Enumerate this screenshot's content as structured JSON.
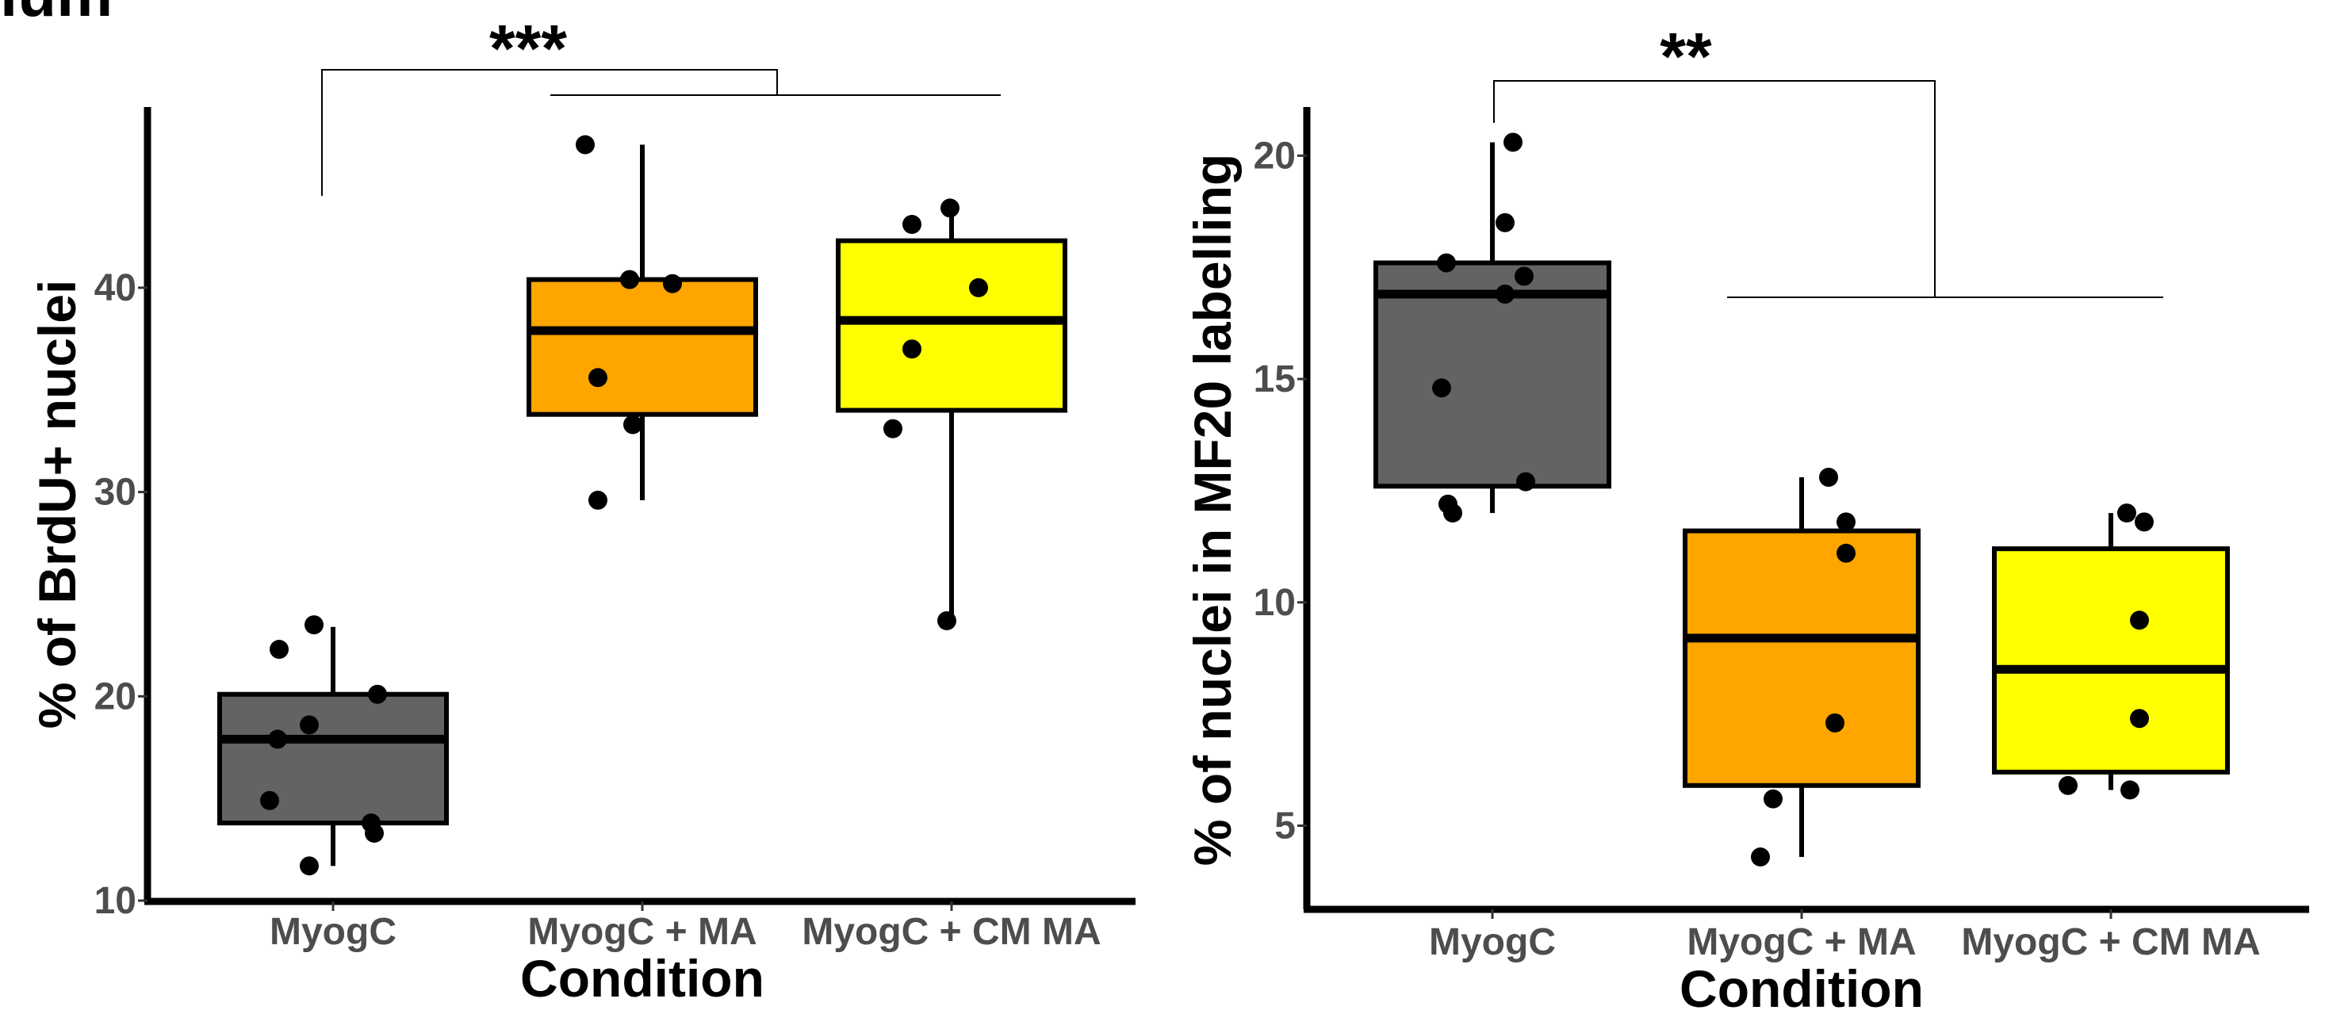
{
  "figure": {
    "top_label_fragment": "ium"
  },
  "chart_data": [
    {
      "type": "box",
      "title": "",
      "xlabel": "Condition",
      "ylabel": "% of BrdU+ nuclei",
      "ylim": [
        10,
        49
      ],
      "yticks": [
        10,
        20,
        30,
        40
      ],
      "grid": false,
      "legend": "none",
      "categories": [
        "MyogC",
        "MyogC + MA",
        "MyogC + CM MA"
      ],
      "colors": [
        "#636363",
        "#ffa500",
        "#ffff00"
      ],
      "boxes": [
        {
          "q1": 13.8,
          "median": 17.9,
          "q3": 20.1,
          "whisker_low": 11.7,
          "whisker_high": 23.4
        },
        {
          "q1": 33.8,
          "median": 37.9,
          "q3": 40.4,
          "whisker_low": 29.6,
          "whisker_high": 47.0
        },
        {
          "q1": 34.0,
          "median": 38.4,
          "q3": 42.3,
          "whisker_low": 23.7,
          "whisker_high": 43.8
        }
      ],
      "points": [
        [
          23.5,
          22.3,
          20.1,
          18.6,
          17.9,
          14.9,
          13.8,
          13.3,
          11.7
        ],
        [
          47.0,
          40.4,
          40.2,
          35.6,
          33.3,
          29.6
        ],
        [
          43.9,
          43.1,
          40.0,
          37.0,
          33.1,
          23.7
        ]
      ],
      "annotations": [
        {
          "text": "***",
          "from": 0,
          "to": [
            1,
            2
          ]
        }
      ]
    },
    {
      "type": "box",
      "title": "",
      "xlabel": "Condition",
      "ylabel": "% of nuclei in MF20 labelling",
      "ylim": [
        3.5,
        21
      ],
      "yticks": [
        5,
        10,
        15,
        20
      ],
      "grid": false,
      "legend": "none",
      "categories": [
        "MyogC",
        "MyogC + MA",
        "MyogC + CM MA"
      ],
      "colors": [
        "#636363",
        "#ffa500",
        "#ffff00"
      ],
      "boxes": [
        {
          "q1": 12.6,
          "median": 16.9,
          "q3": 17.6,
          "whisker_low": 12.0,
          "whisker_high": 20.3
        },
        {
          "q1": 5.9,
          "median": 9.2,
          "q3": 11.6,
          "whisker_low": 4.3,
          "whisker_high": 12.8
        },
        {
          "q1": 6.2,
          "median": 8.5,
          "q3": 11.2,
          "whisker_low": 5.8,
          "whisker_high": 12.0
        }
      ],
      "points": [
        [
          20.3,
          18.5,
          17.6,
          17.3,
          16.9,
          14.8,
          12.7,
          12.2,
          12.0
        ],
        [
          12.8,
          11.8,
          11.1,
          7.3,
          5.6,
          4.3
        ],
        [
          12.0,
          11.8,
          9.6,
          7.4,
          5.9,
          5.8
        ]
      ],
      "annotations": [
        {
          "text": "**",
          "from": 0,
          "to": [
            1,
            2
          ]
        }
      ]
    }
  ]
}
